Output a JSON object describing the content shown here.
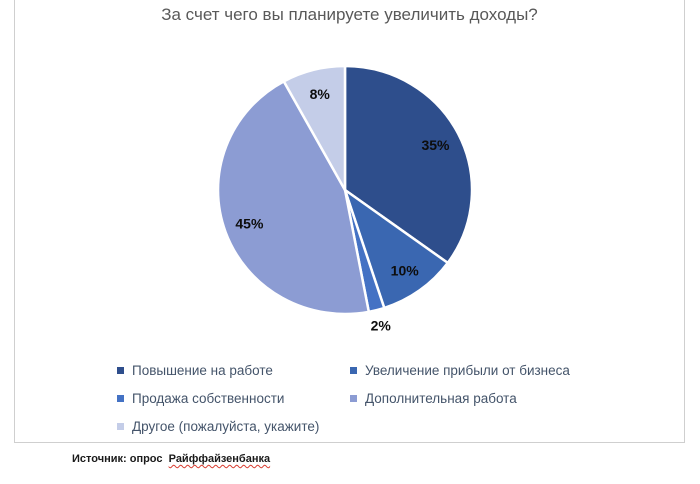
{
  "chart_data": {
    "type": "pie",
    "title": "За счет чего вы планируете увеличить доходы?",
    "categories": [
      "Повышение на работе",
      "Увеличение прибыли от бизнеса",
      "Продажа собственности",
      "Дополнительная работа",
      "Другое (пожалуйста, укажите)"
    ],
    "values": [
      35,
      10,
      2,
      45,
      8
    ],
    "data_labels": [
      "35%",
      "10%",
      "2%",
      "45%",
      "8%"
    ],
    "colors": [
      "#2e4e8c",
      "#3a67b1",
      "#4472c4",
      "#8c9cd3",
      "#c4cde8"
    ],
    "start_angle_deg": 0,
    "direction": "clockwise",
    "slice_separator_color": "#ffffff",
    "legend_position": "bottom",
    "title_color": "#595959",
    "label_color": "#0d0d0d"
  },
  "source": {
    "prefix": "Источник: опрос",
    "highlight": "Райффайзенбанка"
  }
}
